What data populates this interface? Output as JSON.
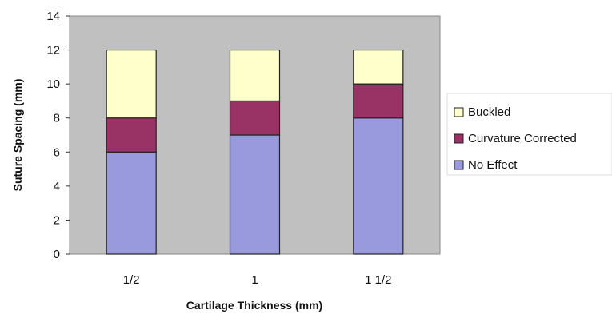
{
  "chart_data": {
    "type": "bar",
    "stacked": true,
    "categories": [
      "1/2",
      "1",
      "1 1/2"
    ],
    "series": [
      {
        "name": "No Effect",
        "values": [
          6,
          7,
          8
        ],
        "color": "#9999dd"
      },
      {
        "name": "Curvature Corrected",
        "values": [
          2,
          2,
          2
        ],
        "color": "#993366"
      },
      {
        "name": "Buckled",
        "values": [
          4,
          3,
          2
        ],
        "color": "#ffffcc"
      }
    ],
    "legend_order": [
      "Buckled",
      "Curvature Corrected",
      "No Effect"
    ],
    "title": "",
    "xlabel": "Cartilage Thickness (mm)",
    "ylabel": "Suture Spacing (mm)",
    "ylim": [
      0,
      14
    ],
    "yticks": [
      0,
      2,
      4,
      6,
      8,
      10,
      12,
      14
    ],
    "grid": false,
    "legend_position": "right",
    "plot_background": "#c0c0c0"
  }
}
